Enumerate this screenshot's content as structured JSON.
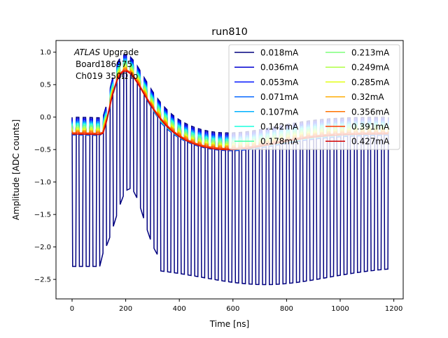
{
  "chart_data": {
    "type": "line",
    "title": "run810",
    "xlabel": "Time [ns]",
    "ylabel": "Amplitude [ADC counts]",
    "xlim": [
      -60,
      1235
    ],
    "ylim": [
      -2.8,
      1.18
    ],
    "xticks": [
      "0",
      "200",
      "400",
      "600",
      "800",
      "1000",
      "1200"
    ],
    "xtick_values": [
      0,
      200,
      400,
      600,
      800,
      1000,
      1200
    ],
    "yticks": [
      "1.0",
      "0.5",
      "0.0",
      "−0.5",
      "−1.0",
      "−1.5",
      "−2.0",
      "−2.5"
    ],
    "ytick_values": [
      1.0,
      0.5,
      0.0,
      -0.5,
      -1.0,
      -1.5,
      -2.0,
      -2.5
    ],
    "grid": false,
    "legend_placement": "top-right",
    "legend_columns": 2,
    "annotation": {
      "italic": "ATLAS",
      "rest": " Upgrade",
      "line2": "Board186975",
      "line3": "Ch019 350Ω lo"
    },
    "pulse": {
      "t_start": 0,
      "t_end": 1180,
      "peak_time": 200,
      "peak_amplitude": 1.0,
      "undershoot_time": 570,
      "undershoot_amplitude": -0.25,
      "period_ns": 25.3,
      "low_dip_base": -2.3,
      "low_dip_min": -2.58
    },
    "series": [
      {
        "name": "0.018mA",
        "color": "#00007f",
        "offset": 0.0
      },
      {
        "name": "0.036mA",
        "color": "#0000d1",
        "offset": -0.02
      },
      {
        "name": "0.053mA",
        "color": "#0014ff",
        "offset": -0.04
      },
      {
        "name": "0.071mA",
        "color": "#0064ff",
        "offset": -0.06
      },
      {
        "name": "0.107mA",
        "color": "#00b0ff",
        "offset": -0.08
      },
      {
        "name": "0.142mA",
        "color": "#19ffde",
        "offset": -0.1
      },
      {
        "name": "0.178mA",
        "color": "#49ffad",
        "offset": -0.12
      },
      {
        "name": "0.213mA",
        "color": "#7dff7a",
        "offset": -0.14
      },
      {
        "name": "0.249mA",
        "color": "#b0ff46",
        "offset": -0.16
      },
      {
        "name": "0.285mA",
        "color": "#e3ff13",
        "offset": -0.18
      },
      {
        "name": "0.32mA",
        "color": "#ffab00",
        "offset": -0.2
      },
      {
        "name": "0.356mA",
        "color": "#ff7200",
        "offset": -0.22
      },
      {
        "name": "0.391mA",
        "color": "#ff3800",
        "offset": -0.24
      },
      {
        "name": "0.427mA",
        "color": "#d10000",
        "offset": -0.26
      }
    ]
  }
}
